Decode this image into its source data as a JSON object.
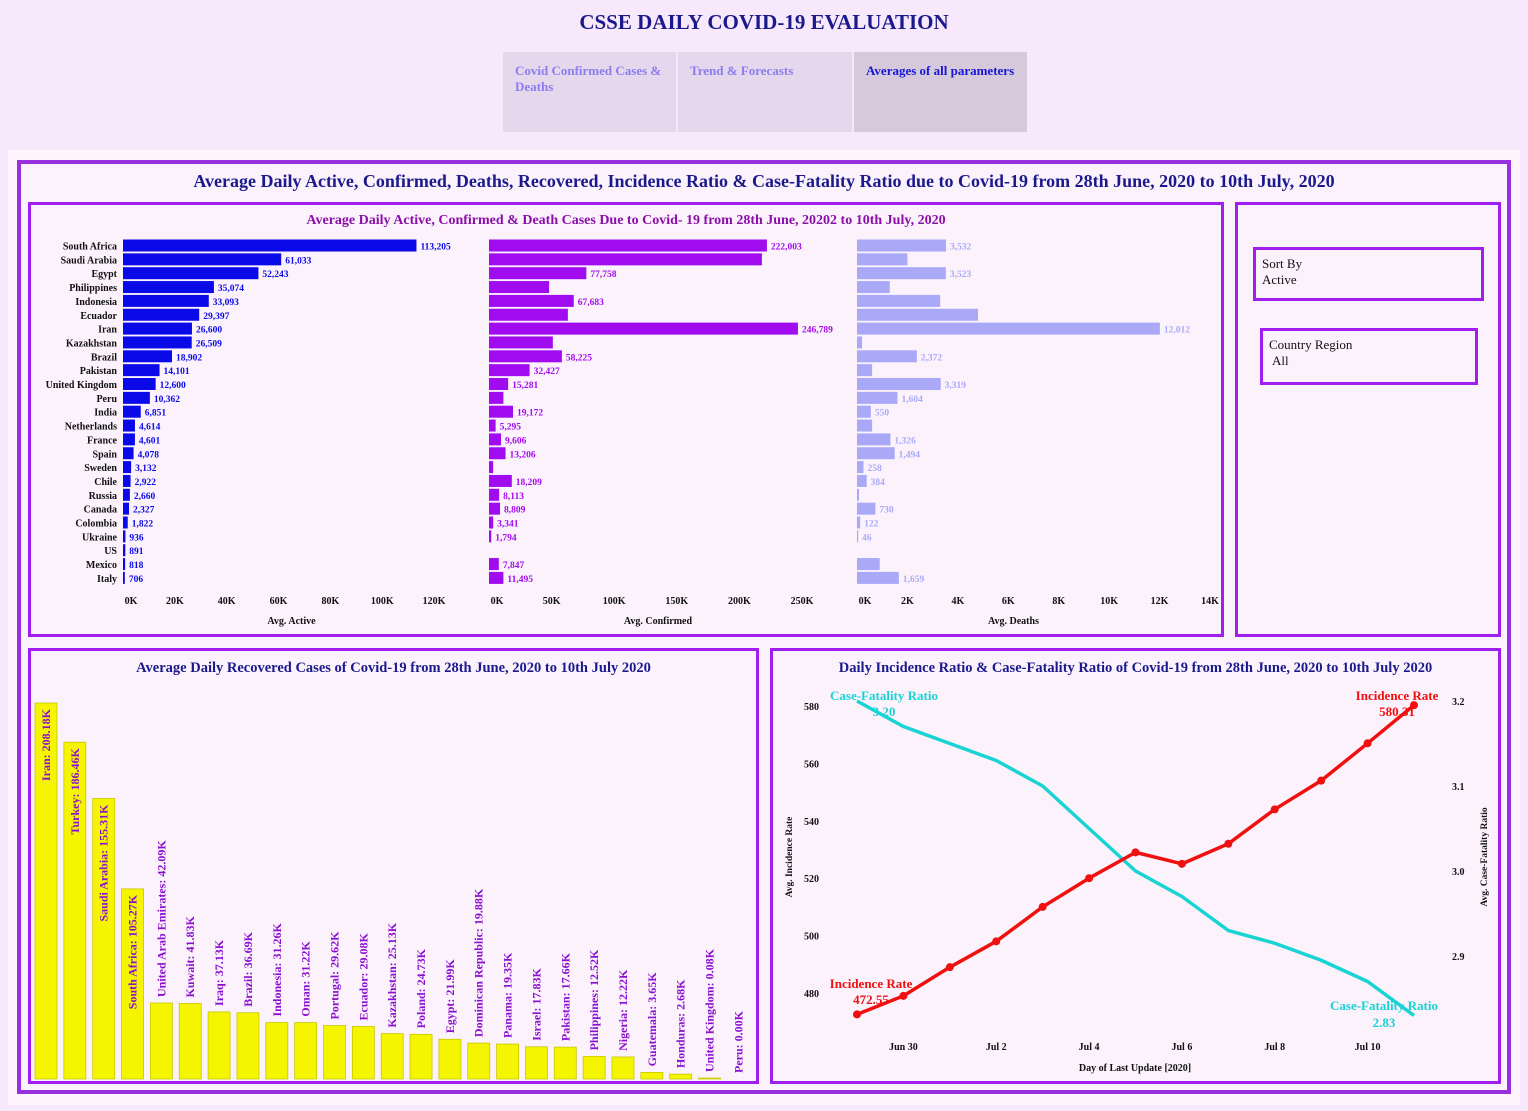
{
  "header": {
    "title": "CSSE DAILY COVID-19 EVALUATION"
  },
  "tabs": [
    {
      "label": "Covid Confirmed Cases & Deaths"
    },
    {
      "label": "Trend & Forecasts"
    },
    {
      "label": "Averages of all parameters"
    }
  ],
  "dashboard": {
    "title": "Average Daily Active, Confirmed, Deaths, Recovered, Incidence Ratio & Case-Fatality Ratio due to Covid-19 from 28th June, 2020 to 10th July, 2020"
  },
  "filters": {
    "sort": {
      "label": "Sort By",
      "value": "Active"
    },
    "country": {
      "label": "Country Region",
      "value": "All"
    }
  },
  "colors": {
    "active": "#0a0ae8",
    "confirmed": "#a10bf0",
    "deaths": "#a9a9f7",
    "recovered": "#f5f500",
    "incidence": "#f01010",
    "cfr": "#1ad3d3"
  },
  "chart_data": [
    {
      "type": "bar",
      "title": "Average Daily Active, Confirmed & Death Cases Due to Covid- 19 from 28th June, 20202 to 10th July, 2020",
      "orientation": "horizontal",
      "categories": [
        "South Africa",
        "Saudi Arabia",
        "Egypt",
        "Philippines",
        "Indonesia",
        "Ecuador",
        "Iran",
        "Kazakhstan",
        "Brazil",
        "Pakistan",
        "United Kingdom",
        "Peru",
        "India",
        "Netherlands",
        "France",
        "Spain",
        "Sweden",
        "Chile",
        "Russia",
        "Canada",
        "Colombia",
        "Ukraine",
        "US",
        "Mexico",
        "Italy"
      ],
      "series": [
        {
          "name": "Avg. Active",
          "values": [
            113205,
            61033,
            52243,
            35074,
            33093,
            29397,
            26600,
            26509,
            18902,
            14101,
            12600,
            10362,
            6851,
            4614,
            4601,
            4078,
            3132,
            2922,
            2660,
            2327,
            1822,
            936,
            891,
            818,
            706
          ],
          "labels": [
            "113,205",
            "61,033",
            "52,243",
            "35,074",
            "33,093",
            "29,397",
            "26,600",
            "26,509",
            "18,902",
            "14,101",
            "12,600",
            "10,362",
            "6,851",
            "4,614",
            "4,601",
            "4,078",
            "3,132",
            "2,922",
            "2,660",
            "2,327",
            "1,822",
            "936",
            "891",
            "818",
            "706"
          ],
          "xlim": [
            0,
            130000
          ],
          "ticks": [
            0,
            20000,
            40000,
            60000,
            80000,
            100000,
            120000
          ],
          "tick_labels": [
            "0K",
            "20K",
            "40K",
            "60K",
            "80K",
            "100K",
            "120K"
          ],
          "xlabel": "Avg. Active"
        },
        {
          "name": "Avg. Confirmed",
          "values": [
            222003,
            218000,
            77758,
            48000,
            67683,
            63000,
            246789,
            51000,
            58225,
            32427,
            15281,
            11500,
            19172,
            5295,
            9606,
            13206,
            3300,
            18209,
            8113,
            8809,
            3341,
            1794,
            0,
            7847,
            11495
          ],
          "labels": [
            "222,003",
            "",
            "77,758",
            "",
            "67,683",
            "",
            "246,789",
            "",
            "58,225",
            "32,427",
            "15,281",
            "",
            "19,172",
            "5,295",
            "9,606",
            "13,206",
            "",
            "18,209",
            "8,113",
            "8,809",
            "3,341",
            "1,794",
            "",
            "7,847",
            "11,495"
          ],
          "xlim": [
            0,
            270000
          ],
          "ticks": [
            0,
            50000,
            100000,
            150000,
            200000,
            250000
          ],
          "tick_labels": [
            "0K",
            "50K",
            "100K",
            "150K",
            "200K",
            "250K"
          ],
          "xlabel": "Avg. Confirmed"
        },
        {
          "name": "Avg. Deaths",
          "values": [
            3532,
            2000,
            3523,
            1300,
            3300,
            4800,
            12012,
            200,
            2372,
            600,
            3319,
            1604,
            550,
            600,
            1326,
            1494,
            258,
            384,
            80,
            730,
            122,
            46,
            0,
            900,
            1659
          ],
          "labels": [
            "3,532",
            "",
            "3,523",
            "",
            "",
            "",
            "12,012",
            "",
            "2,372",
            "",
            "3,319",
            "1,604",
            "550",
            "",
            "1,326",
            "1,494",
            "258",
            "384",
            "",
            "730",
            "122",
            "46",
            "",
            "",
            "1,659"
          ],
          "xlim": [
            0,
            14000
          ],
          "ticks": [
            0,
            2000,
            4000,
            6000,
            8000,
            10000,
            12000,
            14000
          ],
          "tick_labels": [
            "0K",
            "2K",
            "4K",
            "6K",
            "8K",
            "10K",
            "12K",
            "14K"
          ],
          "xlabel": "Avg. Deaths"
        }
      ]
    },
    {
      "type": "bar",
      "title": "Average Daily Recovered Cases of Covid-19 from 28th June, 2020 to 10th July 2020",
      "categories": [
        "Iran",
        "Turkey",
        "Saudi Arabia",
        "South Africa",
        "United Arab Emirates",
        "Kuwait",
        "Iraq",
        "Brazil",
        "Indonesia",
        "Oman",
        "Portugal",
        "Ecuador",
        "Kazakhstan",
        "Poland",
        "Egypt",
        "Dominican Republic",
        "Panama",
        "Israel",
        "Pakistan",
        "Philippines",
        "Nigeria",
        "Guatemala",
        "Honduras",
        "United Kingdom",
        "Peru"
      ],
      "values": [
        208.18,
        186.46,
        155.31,
        105.27,
        42.09,
        41.83,
        37.13,
        36.69,
        31.26,
        31.22,
        29.62,
        29.08,
        25.13,
        24.73,
        21.99,
        19.88,
        19.35,
        17.83,
        17.66,
        12.52,
        12.22,
        3.65,
        2.68,
        0.08,
        0.0
      ],
      "labels": [
        "Iran: 208.18K",
        "Turkey: 186.46K",
        "Saudi Arabia: 155.31K",
        "South Africa: 105.27K",
        "United Arab Emirates: 42.09K",
        "Kuwait: 41.83K",
        "Iraq: 37.13K",
        "Brazil: 36.69K",
        "Indonesia: 31.26K",
        "Oman: 31.22K",
        "Portugal: 29.62K",
        "Ecuador: 29.08K",
        "Kazakhstan: 25.13K",
        "Poland: 24.73K",
        "Egypt: 21.99K",
        "Dominican Republic: 19.88K",
        "Panama: 19.35K",
        "Israel: 17.83K",
        "Pakistan: 17.66K",
        "Philippines: 12.52K",
        "Nigeria: 12.22K",
        "Guatemala: 3.65K",
        "Honduras: 2.68K",
        "United Kingdom: 0.08K",
        "Peru: 0.00K"
      ],
      "unit": "K"
    },
    {
      "type": "line",
      "title": "Daily Incidence Ratio & Case-Fatality Ratio of Covid-19 from 28th June, 2020 to 10th July 2020",
      "xlabel": "Day of Last Update [2020]",
      "x": [
        "2020-06-29",
        "2020-06-30",
        "2020-07-01",
        "2020-07-02",
        "2020-07-03",
        "2020-07-04",
        "2020-07-05",
        "2020-07-06",
        "2020-07-07",
        "2020-07-08",
        "2020-07-09",
        "2020-07-10",
        "2020-07-11"
      ],
      "x_ticks": [
        "Jun 30",
        "Jul 2",
        "Jul 4",
        "Jul 6",
        "Jul 8",
        "Jul 10"
      ],
      "x_tick_dates": [
        "2020-06-30",
        "2020-07-02",
        "2020-07-04",
        "2020-07-06",
        "2020-07-08",
        "2020-07-10"
      ],
      "series": [
        {
          "name": "Incidence Rate",
          "axis": "left",
          "ylabel": "Avg. Incidence Rate",
          "values": [
            472.55,
            479,
            489,
            498,
            510,
            520,
            529,
            525,
            532,
            544,
            554,
            567,
            580.31
          ],
          "start_label": [
            "Incidence Rate",
            "472.55"
          ],
          "end_label": [
            "Incidence Rate",
            "580.31"
          ],
          "ylim": [
            470,
            588
          ],
          "ticks": [
            480,
            500,
            520,
            540,
            560,
            580
          ]
        },
        {
          "name": "Case-Fatality Ratio",
          "axis": "right",
          "ylabel": "Avg. Case-Fatality Ratio",
          "values": [
            3.2,
            3.17,
            3.15,
            3.13,
            3.1,
            3.05,
            3.0,
            2.97,
            2.93,
            2.915,
            2.895,
            2.87,
            2.83
          ],
          "start_label": [
            "Case-Fatality Ratio",
            "3.20"
          ],
          "end_label": [
            "Case-Fatality Ratio",
            "2.83"
          ],
          "ylim": [
            2.82,
            3.22
          ],
          "ticks": [
            2.9,
            3.0,
            3.1,
            3.2
          ],
          "tick_labels": [
            "2.9",
            "3.0",
            "3.1",
            "3.2"
          ]
        }
      ]
    }
  ]
}
